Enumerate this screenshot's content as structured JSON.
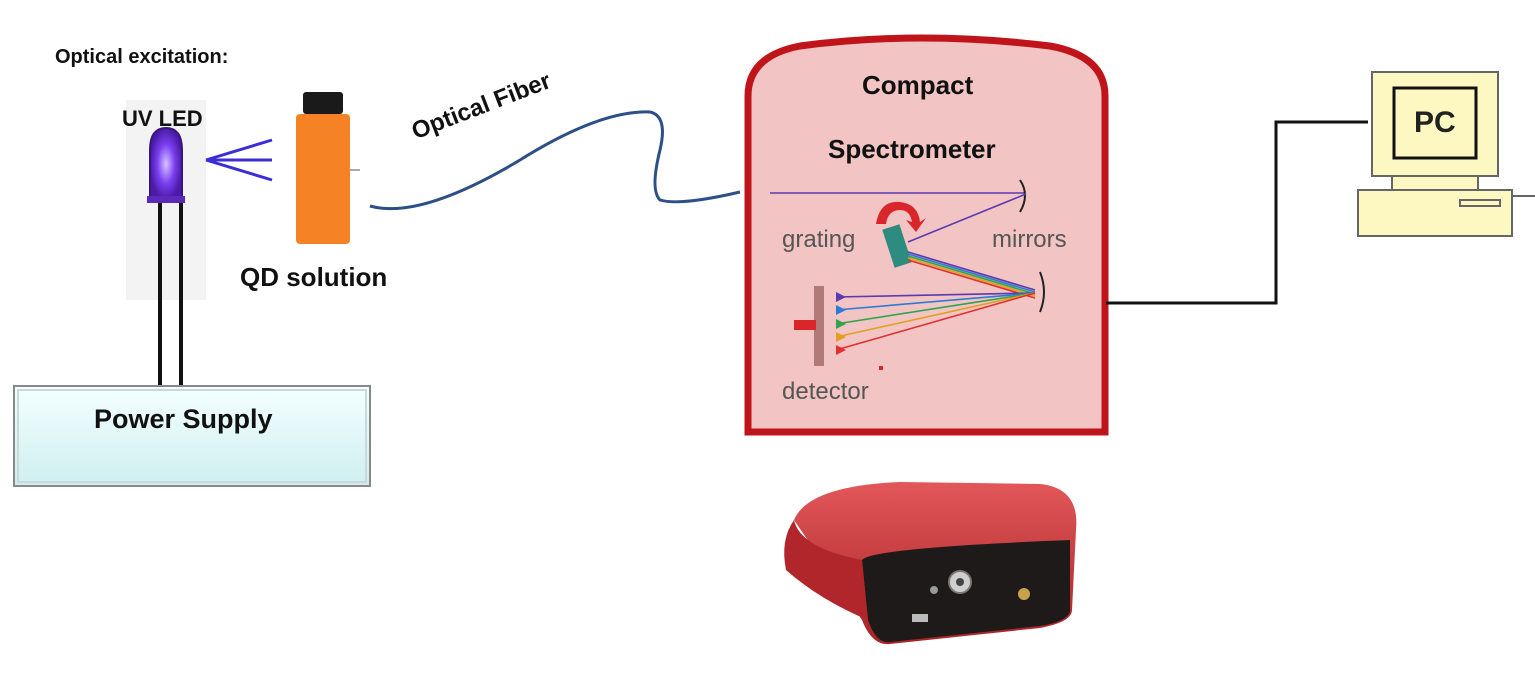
{
  "labels": {
    "excitation": "Optical excitation:",
    "uv_led": "UV LED",
    "qd_solution": "QD solution",
    "optical_fiber": "Optical Fiber",
    "compact": "Compact",
    "spectrometer": "Spectrometer",
    "grating": "grating",
    "mirrors": "mirrors",
    "detector": "detector",
    "power_supply": "Power Supply",
    "pc": "PC"
  },
  "colors": {
    "spectrometer_border": "#c0141b",
    "spectrometer_fill": "#f2c4c4",
    "fiber": "#2c4f86",
    "vial": "#f58225",
    "led": "#6a2bd8",
    "power_supply_fill": "#e4f7f8",
    "pc_fill": "#fdf7c2",
    "device_body": "#c8373a"
  },
  "icons": [
    "uv-led-icon",
    "vial-icon",
    "pc-icon",
    "spectrometer-device-icon",
    "grating-rotation-icon"
  ]
}
